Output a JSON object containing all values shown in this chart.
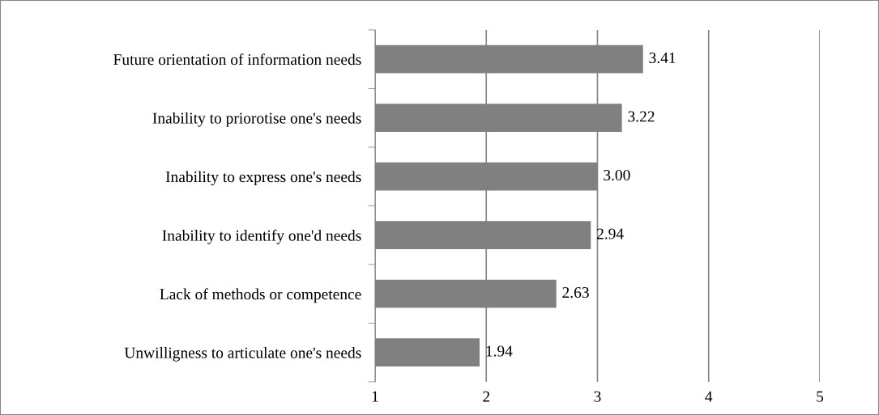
{
  "chart_data": {
    "type": "bar",
    "orientation": "horizontal",
    "categories": [
      "Future orientation of information needs",
      "Inability to priorotise one's needs",
      "Inability to express one's needs",
      "Inability to identify one'd needs",
      "Lack of methods or competence",
      "Unwilligness to articulate one's needs"
    ],
    "values": [
      3.41,
      3.22,
      3.0,
      2.94,
      2.63,
      1.94
    ],
    "value_labels": [
      "3.41",
      "3.22",
      "3.00",
      "2.94",
      "2.63",
      "1.94"
    ],
    "color": "#808080",
    "xlim": [
      1,
      5
    ],
    "xticks": [
      1,
      2,
      3,
      4,
      5
    ],
    "grid": "x"
  }
}
